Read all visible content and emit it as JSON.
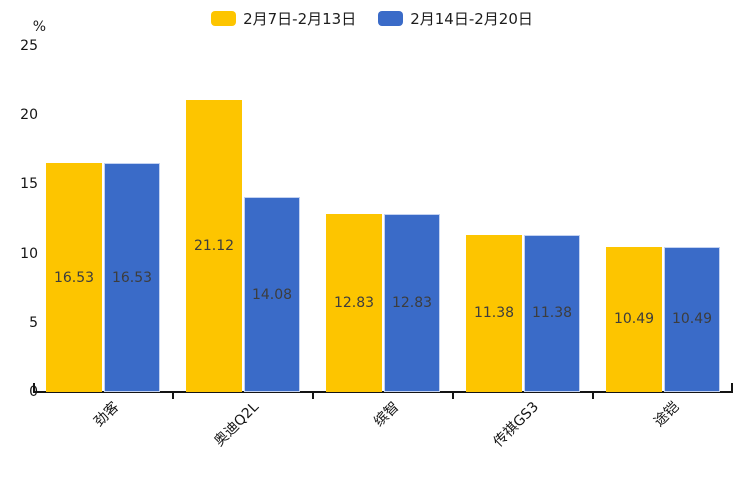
{
  "chart_data": {
    "type": "bar",
    "unit": "%",
    "categories": [
      "劲客",
      "奥迪Q2L",
      "缤智",
      "传祺GS3",
      "途铠"
    ],
    "series": [
      {
        "name": "2月7日-2月13日",
        "color": "#FDC500",
        "values": [
          16.53,
          21.12,
          12.83,
          11.38,
          10.49
        ]
      },
      {
        "name": "2月14日-2月20日",
        "color": "#3A6BC8",
        "values": [
          16.53,
          14.08,
          12.83,
          11.38,
          10.49
        ]
      }
    ],
    "value_labels": [
      "16.53",
      "21.12",
      "12.83",
      "11.38",
      "10.49",
      "16.53",
      "14.08",
      "12.83",
      "11.38",
      "10.49"
    ],
    "ylim": [
      0,
      25
    ],
    "yticks": [
      0,
      5,
      10,
      15,
      20,
      25
    ],
    "grid": false,
    "legend_position": "top",
    "axis_color": "#141414",
    "label_color": "#3d3d3d"
  }
}
